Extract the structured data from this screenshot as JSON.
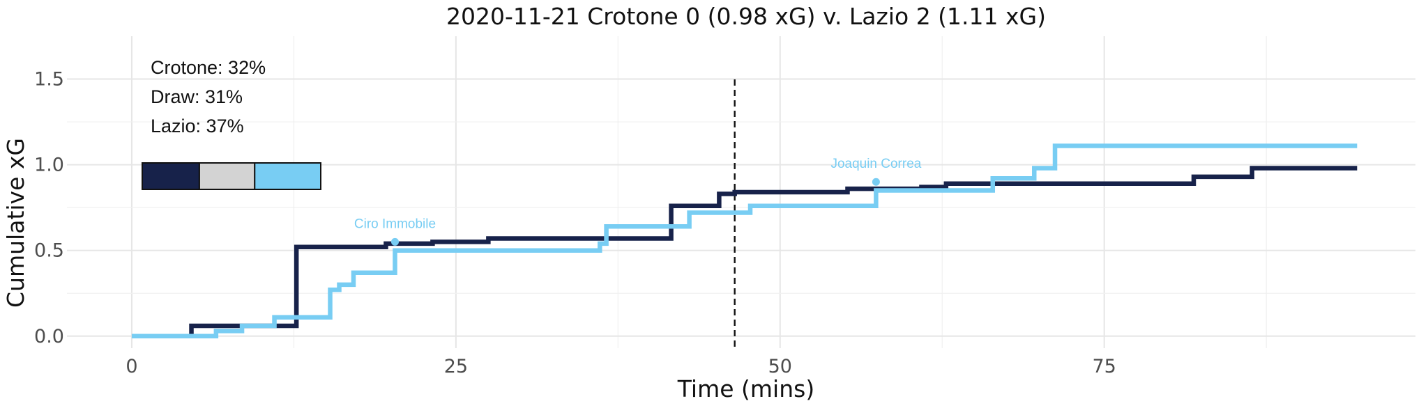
{
  "colors": {
    "home": "#17224a",
    "away": "#78cdf3",
    "draw": "#d3d3d3"
  },
  "chart_data": {
    "type": "line",
    "step": true,
    "title": "2020-11-21 Crotone 0 (0.98 xG) v. Lazio 2 (1.11 xG)",
    "xlabel": "Time (mins)",
    "ylabel": "Cumulative xG",
    "xlim": [
      -5,
      99
    ],
    "ylim": [
      -0.07,
      1.75
    ],
    "xticks": [
      0,
      25,
      50,
      75
    ],
    "yticks": [
      0.0,
      0.5,
      1.0,
      1.5
    ],
    "ytick_labels": [
      "0.0",
      "0.5",
      "1.0",
      "1.5"
    ],
    "grid": true,
    "halftime": 46.5,
    "probabilities": [
      {
        "label": "Crotone: 32%",
        "value": 0.32
      },
      {
        "label": "Draw: 31%",
        "value": 0.31
      },
      {
        "label": "Lazio: 37%",
        "value": 0.37
      }
    ],
    "series": [
      {
        "team": "home",
        "points": [
          [
            0,
            0.0
          ],
          [
            4.6,
            0.06
          ],
          [
            12.7,
            0.52
          ],
          [
            19.6,
            0.54
          ],
          [
            23.2,
            0.55
          ],
          [
            27.5,
            0.57
          ],
          [
            41.6,
            0.76
          ],
          [
            45.3,
            0.83
          ],
          [
            46.5,
            0.84
          ],
          [
            55.2,
            0.86
          ],
          [
            60.9,
            0.87
          ],
          [
            62.8,
            0.89
          ],
          [
            81.9,
            0.93
          ],
          [
            86.4,
            0.98
          ],
          [
            94.5,
            0.98
          ]
        ]
      },
      {
        "team": "away",
        "points": [
          [
            0,
            0.0
          ],
          [
            6.5,
            0.03
          ],
          [
            8.5,
            0.06
          ],
          [
            11.0,
            0.11
          ],
          [
            15.3,
            0.27
          ],
          [
            16.0,
            0.3
          ],
          [
            17.1,
            0.37
          ],
          [
            20.3,
            0.5
          ],
          [
            36.1,
            0.54
          ],
          [
            36.6,
            0.64
          ],
          [
            43.0,
            0.72
          ],
          [
            47.7,
            0.76
          ],
          [
            57.4,
            0.85
          ],
          [
            66.4,
            0.92
          ],
          [
            69.6,
            0.98
          ],
          [
            71.2,
            1.11
          ],
          [
            94.5,
            1.11
          ]
        ]
      }
    ],
    "goals": [
      {
        "label": "Ciro Immobile",
        "x": 20.3,
        "y": 0.55
      },
      {
        "label": "Joaquin Correa",
        "x": 57.4,
        "y": 0.9
      }
    ]
  }
}
